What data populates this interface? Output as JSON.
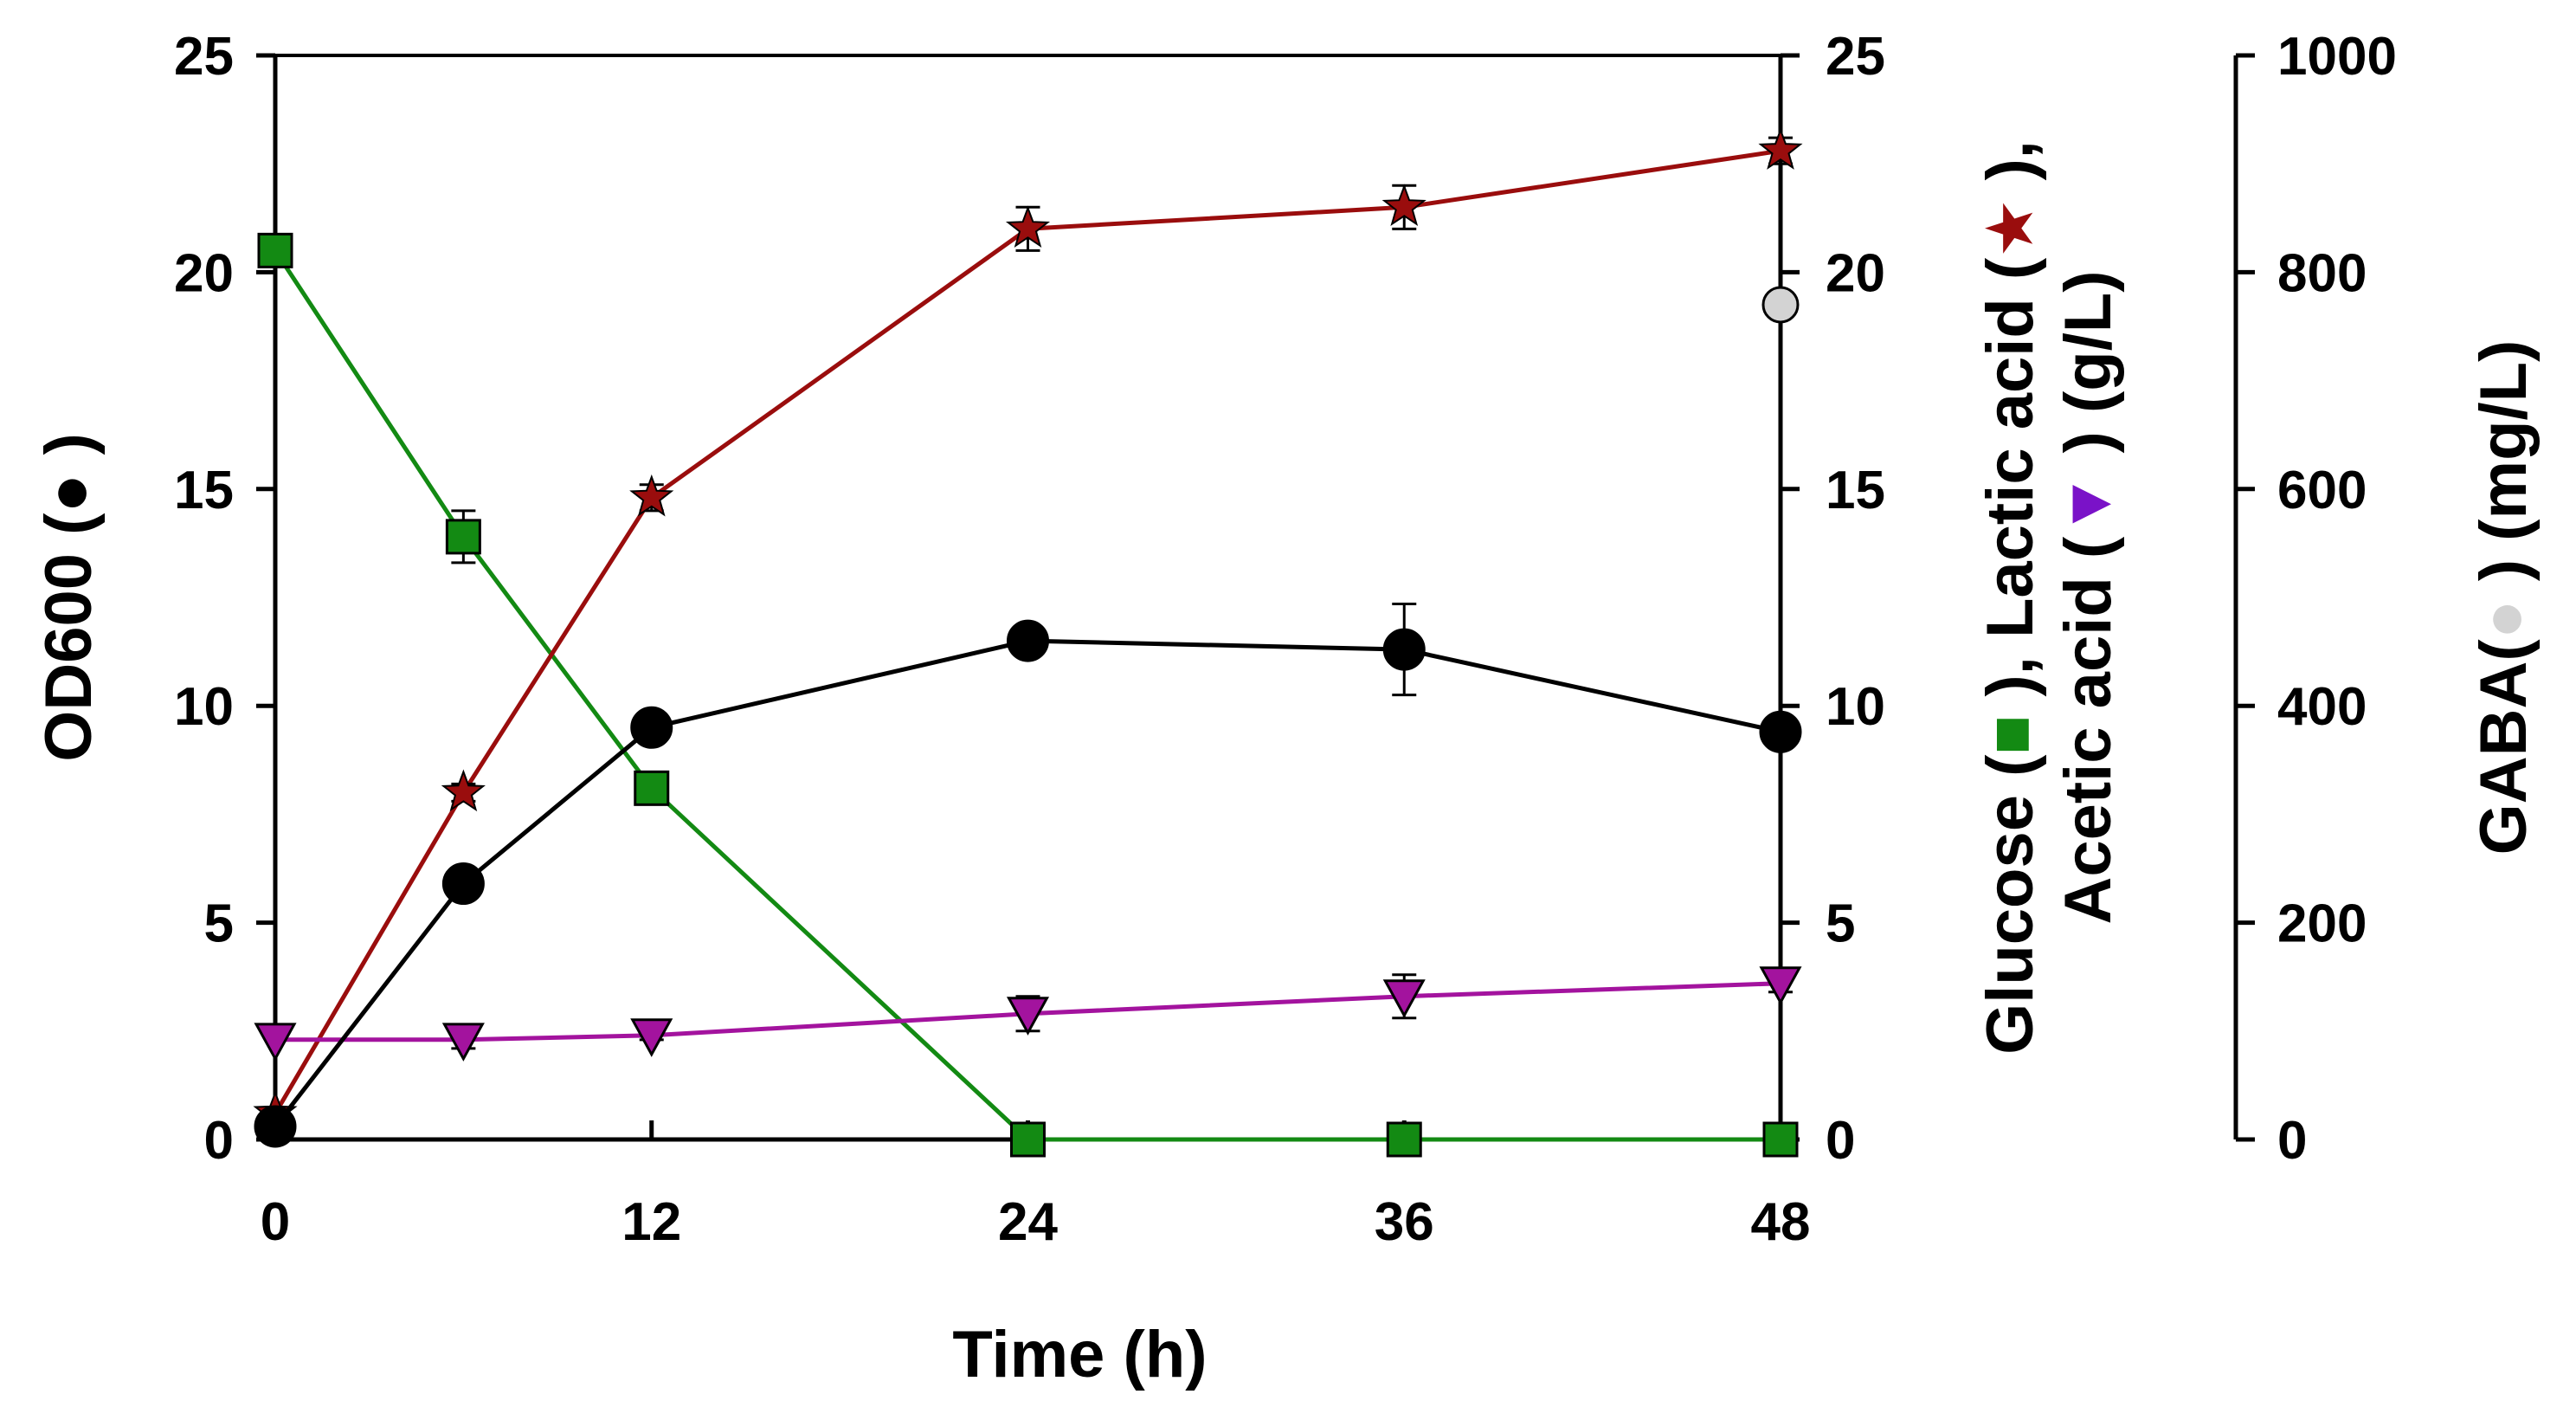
{
  "chart_data": {
    "type": "line",
    "x": [
      0,
      6,
      12,
      24,
      36,
      48
    ],
    "xlabel": "Time (h)",
    "xlim": [
      0,
      48
    ],
    "x_ticks": [
      "0",
      "12",
      "24",
      "36",
      "48"
    ],
    "axes": {
      "left": {
        "title_parts": [
          "OD600 (",
          "●",
          " )"
        ],
        "ylim": [
          0,
          25
        ],
        "ticks": [
          "0",
          "5",
          "10",
          "15",
          "20",
          "25"
        ]
      },
      "right1": {
        "title_line1_parts": [
          "Glucose (",
          "■",
          " ), Lactic acid (",
          "★",
          " ),"
        ],
        "title_line2_parts": [
          "Acetic acid (",
          "▼",
          " ) (g/L)"
        ],
        "ylim": [
          0,
          25
        ],
        "ticks": [
          "0",
          "5",
          "10",
          "15",
          "20",
          "25"
        ]
      },
      "right2": {
        "title_parts": [
          "GABA(",
          "●",
          " ) (mg/L)"
        ],
        "ylim": [
          0,
          1000
        ],
        "ticks": [
          "0",
          "200",
          "400",
          "600",
          "800",
          "1000"
        ]
      }
    },
    "series": [
      {
        "name": "Glucose",
        "axis": "right1",
        "marker": "square",
        "color": "#138a13",
        "x": [
          0,
          6,
          12,
          24,
          36,
          48
        ],
        "values": [
          20.5,
          13.9,
          8.1,
          0,
          0,
          0
        ],
        "errors": [
          0,
          0.6,
          0,
          0,
          0,
          0
        ]
      },
      {
        "name": "Lactic acid",
        "axis": "right1",
        "marker": "star",
        "color": "#9a0d0d",
        "x": [
          0,
          6,
          12,
          24,
          36,
          48
        ],
        "values": [
          0.6,
          8.0,
          14.8,
          21.0,
          21.5,
          22.8
        ],
        "errors": [
          0,
          0.2,
          0.3,
          0.5,
          0.5,
          0.3
        ]
      },
      {
        "name": "Acetic acid",
        "axis": "right1",
        "marker": "triangle-down",
        "color": "#a3139e",
        "x": [
          0,
          6,
          12,
          24,
          36,
          48
        ],
        "values": [
          2.3,
          2.3,
          2.4,
          2.9,
          3.3,
          3.6
        ],
        "errors": [
          0,
          0.2,
          0.1,
          0.4,
          0.5,
          0.2
        ]
      },
      {
        "name": "OD600",
        "axis": "left",
        "marker": "circle",
        "color": "#000000",
        "x": [
          0,
          6,
          12,
          24,
          36,
          48
        ],
        "values": [
          0.3,
          5.9,
          9.5,
          11.5,
          11.3,
          9.4
        ],
        "errors": [
          0,
          0,
          0,
          0,
          1.05,
          0.35
        ]
      },
      {
        "name": "GABA",
        "axis": "right2",
        "marker": "circle",
        "color": "#d3d3d3",
        "x": [
          48
        ],
        "values": [
          770
        ],
        "errors": [
          0
        ]
      }
    ]
  }
}
